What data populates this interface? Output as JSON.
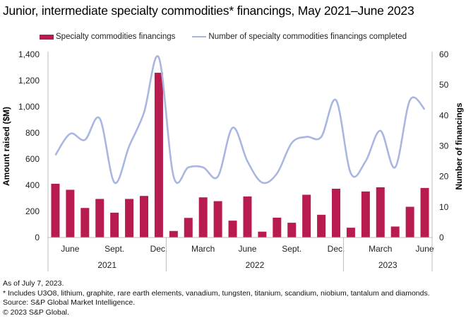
{
  "chart_data": {
    "type": "bar",
    "title": "Junior, intermediate specialty commodities* financings, May 2021–June 2023",
    "categories": [
      "May 2021",
      "Jun 2021",
      "Jul 2021",
      "Aug 2021",
      "Sep 2021",
      "Oct 2021",
      "Nov 2021",
      "Dec 2021",
      "Jan 2022",
      "Feb 2022",
      "Mar 2022",
      "Apr 2022",
      "May 2022",
      "Jun 2022",
      "Jul 2022",
      "Aug 2022",
      "Sep 2022",
      "Oct 2022",
      "Nov 2022",
      "Dec 2022",
      "Jan 2023",
      "Feb 2023",
      "Mar 2023",
      "Apr 2023",
      "May 2023",
      "Jun 2023"
    ],
    "tick_labels": [
      "",
      "June",
      "",
      "",
      "Sept.",
      "",
      "",
      "Dec.",
      "",
      "",
      "March",
      "",
      "",
      "June",
      "",
      "",
      "Sept.",
      "",
      "",
      "Dec.",
      "",
      "",
      "March",
      "",
      "",
      "June"
    ],
    "year_groups": [
      {
        "label": "2021",
        "start": 0,
        "end": 7
      },
      {
        "label": "2022",
        "start": 8,
        "end": 19
      },
      {
        "label": "2023",
        "start": 20,
        "end": 25
      }
    ],
    "series": [
      {
        "name": "Specialty commodities financings",
        "type": "bar",
        "axis": "left",
        "color": "#b81c4f",
        "values": [
          411,
          365,
          226,
          295,
          190,
          295,
          318,
          1260,
          50,
          150,
          307,
          278,
          129,
          314,
          45,
          152,
          113,
          327,
          174,
          373,
          75,
          352,
          384,
          84,
          235,
          379
        ]
      },
      {
        "name": "Number of specialty commodities financings completed",
        "type": "line",
        "axis": "right",
        "color": "#a9b6e2",
        "values": [
          27,
          34,
          32,
          39,
          18,
          30,
          41,
          59,
          20,
          23,
          23,
          20,
          36,
          25,
          18,
          21,
          31,
          33,
          33,
          45,
          21,
          25,
          35,
          23,
          45,
          42
        ]
      }
    ],
    "ylabel": "Amount raised ($M)",
    "y2label": "Number of financings",
    "ylim": [
      0,
      1400
    ],
    "yticks": [
      "0",
      "200",
      "400",
      "600",
      "800",
      "1,000",
      "1,200",
      "1,400"
    ],
    "y2lim": [
      0,
      60
    ],
    "y2ticks": [
      "0",
      "10",
      "20",
      "30",
      "40",
      "50",
      "60"
    ],
    "grid": false,
    "legend_position": "top"
  },
  "legend": {
    "bar_label": "Specialty commodities financings",
    "line_label": "Number of specialty commodities financings completed"
  },
  "footer": {
    "asof": "As of July 7, 2023.",
    "note": "* Includes U3O8, lithium, graphite, rare earth elements, vanadium, tungsten, titanium, scandium, niobium, tantalum and diamonds.",
    "source": "Source: S&P Global Market Intelligence.",
    "copyright": "© 2023 S&P Global."
  }
}
